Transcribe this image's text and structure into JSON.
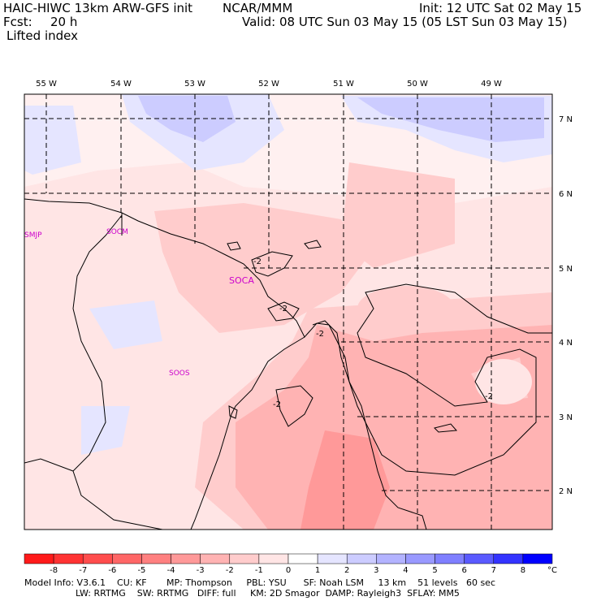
{
  "header": {
    "model_title": "HAIC-HIWC 13km ARW-GFS init",
    "org": "NCAR/MMM",
    "init": "Init: 12 UTC Sat 02 May 15",
    "fcst_label": "Fcst:",
    "fcst_value": "20 h",
    "valid": "Valid: 08 UTC Sun 03 May 15 (05 LST Sun 03 May 15)",
    "field": "Lifted index"
  },
  "map": {
    "lon_labels": [
      "55 W",
      "54 W",
      "53 W",
      "52 W",
      "51 W",
      "50 W",
      "49 W"
    ],
    "lat_labels": [
      "7 N",
      "6 N",
      "5 N",
      "4 N",
      "3 N",
      "2 N"
    ],
    "stations": [
      "SMJP",
      "SOCM",
      "SOCA",
      "SOOS"
    ],
    "contour_labels": [
      "-2",
      "-2",
      "-2",
      "-2",
      "-2"
    ]
  },
  "colorbar": {
    "labels": [
      "-8",
      "-7",
      "-6",
      "-5",
      "-4",
      "-3",
      "-2",
      "-1",
      "0",
      "1",
      "2",
      "3",
      "4",
      "5",
      "6",
      "7",
      "8"
    ],
    "unit": "°C",
    "colors": [
      "#ff1a1a",
      "#ff3333",
      "#ff4d4d",
      "#ff6666",
      "#ff8080",
      "#ff9999",
      "#ffb3b3",
      "#ffcccc",
      "#ffe5e5",
      "#ffffff",
      "#e5e5ff",
      "#ccccff",
      "#b3b3ff",
      "#9999ff",
      "#7f7fff",
      "#5a5aff",
      "#3333ff",
      "#0000ff"
    ]
  },
  "model_info": {
    "line1": "Model Info: V3.6.1    CU: KF       MP: Thompson     PBL: YSU      SF: Noah LSM     13 km    51 levels   60 sec",
    "line2": "                  LW: RRTMG    SW: RRTMG   DIFF: full     KM: 2D Smagor  DAMP: Rayleigh3  SFLAY: MM5"
  }
}
